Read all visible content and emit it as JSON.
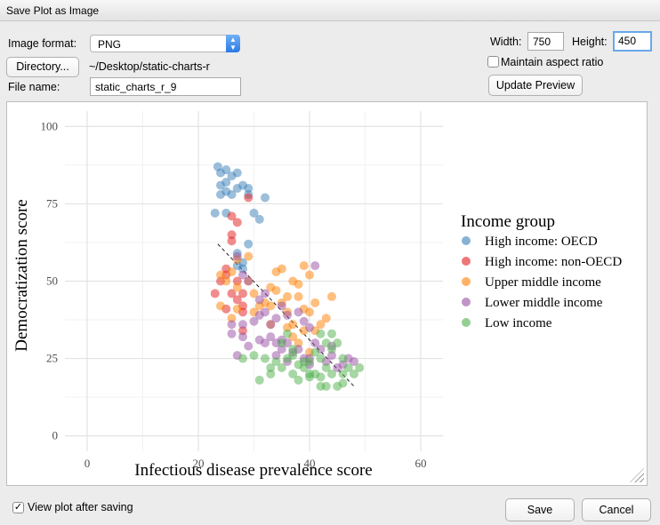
{
  "window": {
    "title": "Save Plot as Image"
  },
  "form": {
    "image_format_label": "Image format:",
    "image_format_value": "PNG",
    "directory_button": "Directory...",
    "directory_path": "~/Desktop/static-charts-r",
    "file_name_label": "File name:",
    "file_name_value": "static_charts_r_9",
    "width_label": "Width:",
    "width_value": "750",
    "height_label": "Height:",
    "height_value": "450",
    "maintain_aspect_label": "Maintain aspect ratio",
    "maintain_aspect_checked": false,
    "update_preview_button": "Update Preview"
  },
  "footer": {
    "view_after_saving_label": "View plot after saving",
    "view_after_saving_checked": true,
    "save_button": "Save",
    "cancel_button": "Cancel"
  },
  "chart_data": {
    "type": "scatter",
    "title": "",
    "xlabel": "Infectious disease prevalence score",
    "ylabel": "Democratization score",
    "xlim": [
      -4,
      64
    ],
    "ylim": [
      -5,
      105
    ],
    "xticks": [
      0,
      20,
      40,
      60
    ],
    "yticks": [
      0,
      25,
      50,
      75,
      100
    ],
    "grid": true,
    "legend_title": "Income group",
    "legend_position": "right",
    "series": [
      {
        "name": "High income: OECD",
        "color": "#377eb8",
        "points": [
          [
            23.5,
            87
          ],
          [
            24,
            85
          ],
          [
            25,
            86
          ],
          [
            25,
            82
          ],
          [
            24,
            81
          ],
          [
            26,
            84
          ],
          [
            27,
            85
          ],
          [
            27,
            80
          ],
          [
            25,
            79
          ],
          [
            28,
            81
          ],
          [
            29,
            78
          ],
          [
            24,
            78
          ],
          [
            26,
            78
          ],
          [
            29,
            80
          ],
          [
            30,
            72
          ],
          [
            31,
            70
          ],
          [
            32,
            77
          ],
          [
            23,
            72
          ],
          [
            25,
            72
          ],
          [
            27,
            59
          ],
          [
            27,
            55
          ],
          [
            28,
            54
          ],
          [
            29,
            62
          ],
          [
            28,
            56
          ]
        ]
      },
      {
        "name": "High income: non-OECD",
        "color": "#e41a1c",
        "points": [
          [
            29,
            77
          ],
          [
            26,
            71
          ],
          [
            26,
            65
          ],
          [
            26,
            63
          ],
          [
            27,
            69
          ],
          [
            25,
            54
          ],
          [
            25,
            52
          ],
          [
            23,
            46
          ],
          [
            26,
            46
          ],
          [
            27,
            44
          ],
          [
            25,
            41
          ],
          [
            28,
            42
          ],
          [
            27,
            50
          ],
          [
            24,
            50
          ],
          [
            28,
            46
          ],
          [
            28,
            40
          ],
          [
            28,
            34
          ]
        ]
      },
      {
        "name": "Upper middle income",
        "color": "#ff7f00",
        "points": [
          [
            24,
            52
          ],
          [
            25,
            50
          ],
          [
            26,
            53
          ],
          [
            27,
            57
          ],
          [
            29,
            58
          ],
          [
            27,
            48
          ],
          [
            29,
            50
          ],
          [
            30,
            46
          ],
          [
            24,
            42
          ],
          [
            26,
            38
          ],
          [
            27,
            41
          ],
          [
            31,
            42
          ],
          [
            32,
            43
          ],
          [
            33,
            48
          ],
          [
            34,
            53
          ],
          [
            35,
            54
          ],
          [
            34,
            47
          ],
          [
            35,
            43
          ],
          [
            36,
            45
          ],
          [
            36,
            40
          ],
          [
            37,
            50
          ],
          [
            38,
            49
          ],
          [
            39,
            55
          ],
          [
            40,
            52
          ],
          [
            38,
            45
          ],
          [
            39,
            41
          ],
          [
            40,
            40
          ],
          [
            41,
            43
          ],
          [
            42,
            36
          ],
          [
            43,
            38
          ],
          [
            44,
            45
          ],
          [
            37,
            36
          ],
          [
            39,
            34
          ],
          [
            36,
            35
          ],
          [
            41,
            34
          ],
          [
            30,
            40
          ],
          [
            33,
            42
          ],
          [
            38,
            30
          ],
          [
            40,
            27
          ],
          [
            37,
            32
          ],
          [
            33,
            36
          ]
        ]
      },
      {
        "name": "Lower middle income",
        "color": "#984ea3",
        "points": [
          [
            27,
            58
          ],
          [
            28,
            52
          ],
          [
            29,
            50
          ],
          [
            31,
            44
          ],
          [
            32,
            46
          ],
          [
            30,
            37
          ],
          [
            31,
            39
          ],
          [
            32,
            40
          ],
          [
            33,
            36
          ],
          [
            34,
            38
          ],
          [
            35,
            42
          ],
          [
            36,
            39
          ],
          [
            38,
            40
          ],
          [
            39,
            37
          ],
          [
            40,
            35
          ],
          [
            33,
            32
          ],
          [
            34,
            30
          ],
          [
            35,
            31
          ],
          [
            36,
            30
          ],
          [
            37,
            27
          ],
          [
            38,
            28
          ],
          [
            39,
            25
          ],
          [
            40,
            25
          ],
          [
            41,
            30
          ],
          [
            42,
            28
          ],
          [
            43,
            24
          ],
          [
            44,
            26
          ],
          [
            45,
            22
          ],
          [
            46,
            23
          ],
          [
            47,
            25
          ],
          [
            48,
            24
          ],
          [
            31,
            31
          ],
          [
            32,
            30
          ],
          [
            35,
            28
          ],
          [
            36,
            24
          ],
          [
            34,
            26
          ],
          [
            29,
            29
          ],
          [
            28,
            32
          ],
          [
            27,
            26
          ],
          [
            26,
            36
          ],
          [
            28,
            36
          ],
          [
            41,
            55
          ],
          [
            40,
            23
          ],
          [
            44,
            29
          ],
          [
            26,
            33
          ]
        ]
      },
      {
        "name": "Low income",
        "color": "#4daf4a",
        "points": [
          [
            30,
            26
          ],
          [
            32,
            25
          ],
          [
            33,
            22
          ],
          [
            33,
            20
          ],
          [
            34,
            24
          ],
          [
            35,
            22
          ],
          [
            36,
            25
          ],
          [
            37,
            20
          ],
          [
            37,
            26
          ],
          [
            38,
            23
          ],
          [
            39,
            22
          ],
          [
            40,
            24
          ],
          [
            40,
            20
          ],
          [
            41,
            27
          ],
          [
            42,
            25
          ],
          [
            43,
            22
          ],
          [
            44,
            33
          ],
          [
            44,
            28
          ],
          [
            45,
            30
          ],
          [
            46,
            25
          ],
          [
            47,
            22
          ],
          [
            48,
            20
          ],
          [
            49,
            22
          ],
          [
            42,
            16
          ],
          [
            43,
            16
          ],
          [
            45,
            16
          ],
          [
            46,
            17
          ],
          [
            41,
            20
          ],
          [
            44,
            20
          ],
          [
            46,
            20
          ],
          [
            38,
            18
          ],
          [
            40,
            19
          ],
          [
            42,
            19
          ],
          [
            39,
            24
          ],
          [
            35,
            30
          ],
          [
            36,
            33
          ],
          [
            37,
            28
          ],
          [
            28,
            25
          ],
          [
            31,
            18
          ],
          [
            42,
            33
          ],
          [
            43,
            30
          ]
        ]
      }
    ],
    "trend_line": {
      "from": [
        23.5,
        62
      ],
      "to": [
        48,
        16
      ]
    }
  }
}
